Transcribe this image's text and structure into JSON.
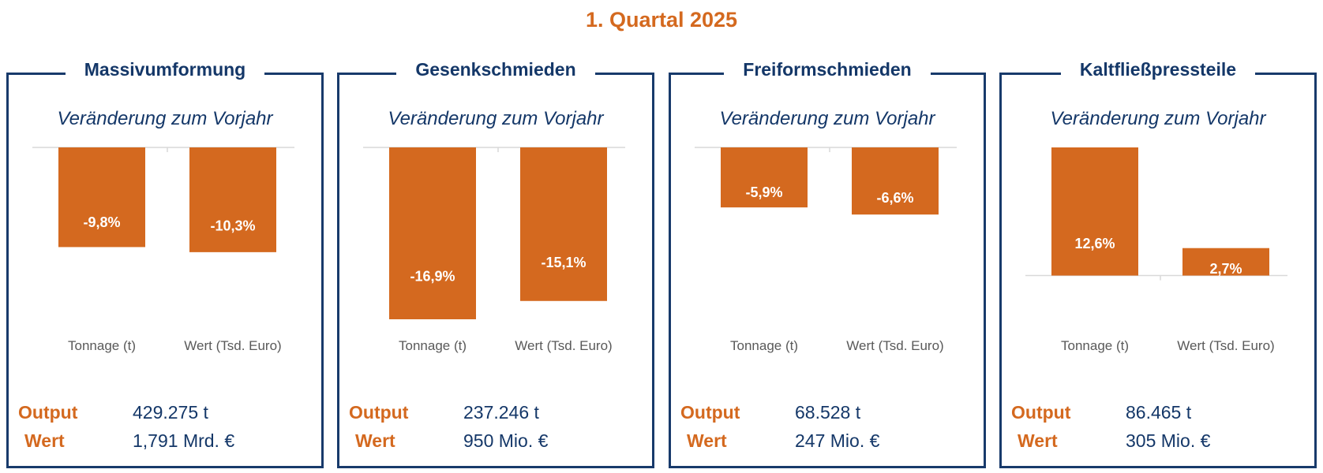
{
  "title": "1. Quartal 2025",
  "panels": [
    {
      "title": "Massivumformung",
      "subtitle": "Veränderung zum Vorjahr",
      "output_label": "Output",
      "output_value": "429.275 t",
      "wert_label": "Wert",
      "wert_value": "1,791 Mrd. €"
    },
    {
      "title": "Gesenkschmieden",
      "subtitle": "Veränderung zum Vorjahr",
      "output_label": "Output",
      "output_value": "237.246 t",
      "wert_label": "Wert",
      "wert_value": "950 Mio. €"
    },
    {
      "title": "Freiformschmieden",
      "subtitle": "Veränderung zum Vorjahr",
      "output_label": "Output",
      "output_value": "68.528 t",
      "wert_label": "Wert",
      "wert_value": "247 Mio. €"
    },
    {
      "title": "Kaltfließpressteile",
      "subtitle": "Veränderung zum Vorjahr",
      "output_label": "Output",
      "output_value": "86.465 t",
      "wert_label": "Wert",
      "wert_value": "305 Mio. €"
    }
  ],
  "chart_data": [
    {
      "type": "bar",
      "title": "Massivumformung",
      "categories": [
        "Tonnage (t)",
        "Wert (Tsd. Euro)"
      ],
      "values": [
        -9.8,
        -10.3
      ],
      "value_labels": [
        "-9,8%",
        "-10,3%"
      ],
      "unit": "%"
    },
    {
      "type": "bar",
      "title": "Gesenkschmieden",
      "categories": [
        "Tonnage (t)",
        "Wert (Tsd. Euro)"
      ],
      "values": [
        -16.9,
        -15.1
      ],
      "value_labels": [
        "-16,9%",
        "-15,1%"
      ],
      "unit": "%"
    },
    {
      "type": "bar",
      "title": "Freiformschmieden",
      "categories": [
        "Tonnage (t)",
        "Wert (Tsd. Euro)"
      ],
      "values": [
        -5.9,
        -6.6
      ],
      "value_labels": [
        "-5,9%",
        "-6,6%"
      ],
      "unit": "%"
    },
    {
      "type": "bar",
      "title": "Kaltfließpressteile",
      "categories": [
        "Tonnage (t)",
        "Wert (Tsd. Euro)"
      ],
      "values": [
        12.6,
        2.7
      ],
      "value_labels": [
        "12,6%",
        "2,7%"
      ],
      "unit": "%"
    }
  ],
  "colors": {
    "bar": "#d4691f",
    "frame": "#183a6b",
    "title": "#d4691f",
    "text": "#143768"
  }
}
